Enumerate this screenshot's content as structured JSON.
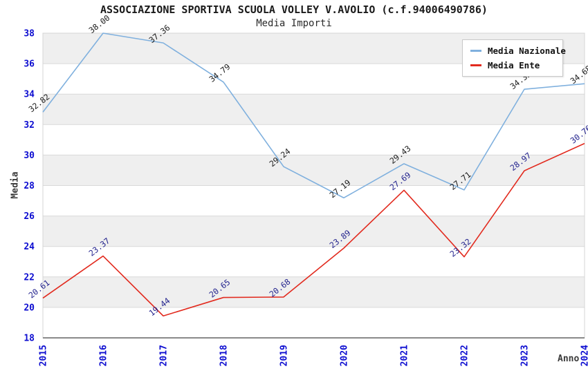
{
  "header": {
    "title": "ASSOCIAZIONE SPORTIVA SCUOLA VOLLEY V.AVOLIO (c.f.94006490786)",
    "subtitle": "Media Importi"
  },
  "axes": {
    "y_label": "Media",
    "x_label": "Anno",
    "tick_color": "#0c0cd0"
  },
  "legend": {
    "items": [
      {
        "label": "Media Nazionale",
        "color": "#7fb0de"
      },
      {
        "label": "Media Ente",
        "color": "#e22a1e"
      }
    ]
  },
  "chart_data": {
    "type": "line",
    "title": "ASSOCIAZIONE SPORTIVA SCUOLA VOLLEY V.AVOLIO (c.f.94006490786)",
    "subtitle": "Media Importi",
    "xlabel": "Anno",
    "ylabel": "Media",
    "x": [
      2015,
      2016,
      2017,
      2018,
      2019,
      2020,
      2021,
      2022,
      2023,
      2024
    ],
    "series": [
      {
        "name": "Media Nazionale",
        "color": "#7fb0de",
        "label_color": "#1c1c1c",
        "values": [
          32.82,
          38.0,
          37.36,
          34.79,
          29.24,
          27.19,
          29.43,
          27.71,
          34.32,
          34.68
        ]
      },
      {
        "name": "Media Ente",
        "color": "#e22a1e",
        "label_color": "#24248e",
        "values": [
          20.61,
          23.37,
          19.44,
          20.65,
          20.68,
          23.89,
          27.69,
          23.32,
          28.97,
          30.76
        ]
      }
    ],
    "ylim": [
      18,
      38
    ],
    "ytick_step": 2,
    "grid": true,
    "band_color": "#efefef",
    "grid_color": "#d9d9d9",
    "axis_line_color": "#8a8a8a",
    "plot_border_color": "#d4d4d4",
    "legend_position": "top-right"
  }
}
